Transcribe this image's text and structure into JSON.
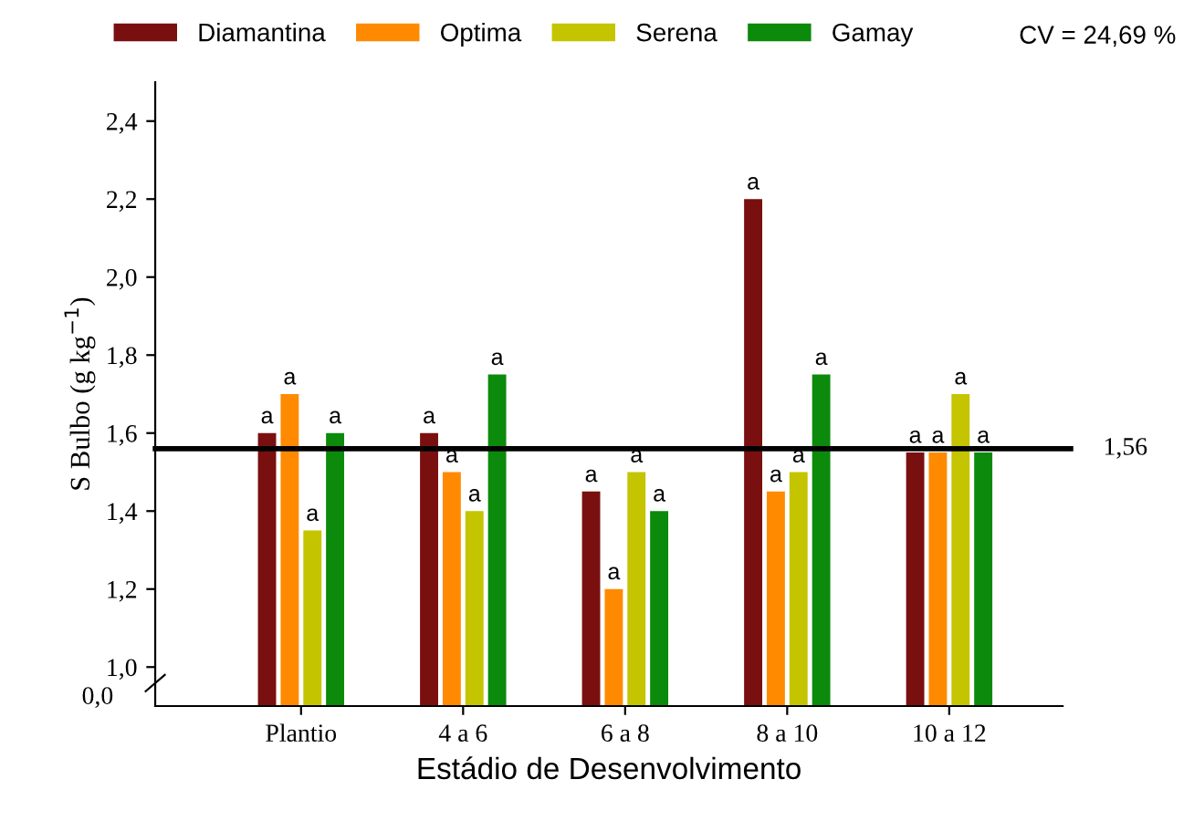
{
  "chart_data": {
    "type": "bar",
    "xlabel": "Estádio de Desenvolvimento",
    "ylabel": "S Bulbo (g kg$^{−1}$)",
    "categories": [
      "Plantio",
      "4 a 6",
      "6 a 8",
      "8 a 10",
      "10 a 12"
    ],
    "series": [
      {
        "name": "Diamantina",
        "color": "#7a0f0f",
        "values": [
          1.6,
          1.6,
          1.45,
          2.2,
          1.55
        ],
        "value_labels": [
          "a",
          "a",
          "a",
          "a",
          "a"
        ]
      },
      {
        "name": "Optima",
        "color": "#ff8a00",
        "values": [
          1.7,
          1.5,
          1.2,
          1.45,
          1.55
        ],
        "value_labels": [
          "a",
          "a",
          "a",
          "a",
          "a"
        ]
      },
      {
        "name": "Serena",
        "color": "#c4c400",
        "values": [
          1.35,
          1.4,
          1.5,
          1.5,
          1.7
        ],
        "value_labels": [
          "a",
          "a",
          "a",
          "a",
          "a"
        ]
      },
      {
        "name": "Gamay",
        "color": "#0b8a0b",
        "values": [
          1.6,
          1.75,
          1.4,
          1.75,
          1.55
        ],
        "value_labels": [
          "a",
          "a",
          "a",
          "a",
          "a"
        ]
      }
    ],
    "ylim": [
      0.9,
      2.5
    ],
    "yticks": [
      {
        "value": 1.0,
        "label": "1,0"
      },
      {
        "value": 1.2,
        "label": "1,2"
      },
      {
        "value": 1.4,
        "label": "1,4"
      },
      {
        "value": 1.6,
        "label": "1,6"
      },
      {
        "value": 1.8,
        "label": "1,8"
      },
      {
        "value": 2.0,
        "label": "2,0"
      },
      {
        "value": 2.2,
        "label": "2,2"
      },
      {
        "value": 2.4,
        "label": "2,4"
      }
    ],
    "ref_lines": [
      {
        "axis": "y",
        "value": 1.56,
        "label": "1,56",
        "color": "#000000",
        "line_style": "solid"
      }
    ],
    "annotations": [
      "CV = 24,69 %",
      "0,0"
    ],
    "legend": "top",
    "grid": false
  }
}
